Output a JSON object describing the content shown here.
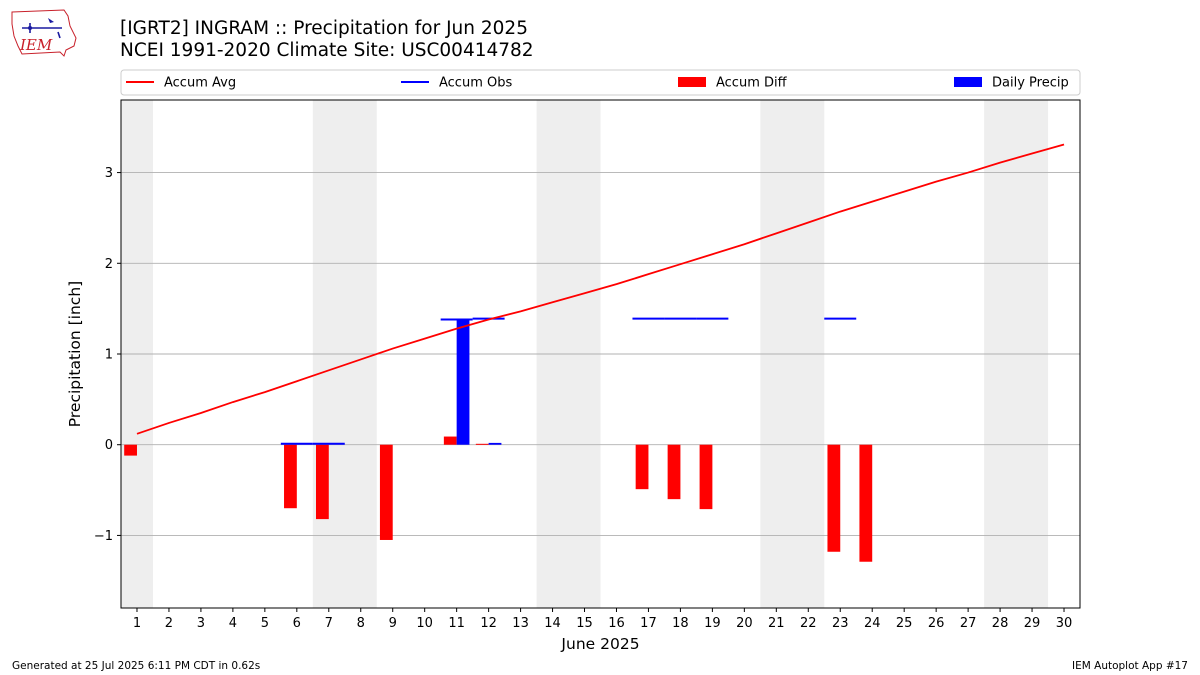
{
  "logo": {
    "text": "IEM"
  },
  "header": {
    "title_line1": "[IGRT2] INGRAM :: Precipitation for Jun 2025",
    "title_line2": "NCEI 1991-2020 Climate Site: USC00414782"
  },
  "footer": {
    "left": "Generated at 25 Jul 2025 6:11 PM CDT in 0.62s",
    "right": "IEM Autoplot App #17"
  },
  "chart_data": {
    "type": "bar",
    "xlabel": "June 2025",
    "ylabel": "Precipitation [inch]",
    "xlim": [
      0.5,
      30.5
    ],
    "ylim": [
      -1.8,
      3.8
    ],
    "yticks": [
      -1,
      0,
      1,
      2,
      3
    ],
    "grid": true,
    "legend_position": "top",
    "days": [
      1,
      2,
      3,
      4,
      5,
      6,
      7,
      8,
      9,
      10,
      11,
      12,
      13,
      14,
      15,
      16,
      17,
      18,
      19,
      20,
      21,
      22,
      23,
      24,
      25,
      26,
      27,
      28,
      29,
      30
    ],
    "weekend_shading": [
      [
        0.5,
        1.5
      ],
      [
        6.5,
        8.5
      ],
      [
        13.5,
        15.5
      ],
      [
        20.5,
        22.5
      ],
      [
        27.5,
        29.5
      ]
    ],
    "colors": {
      "avg": "#ff0000",
      "obs": "#0000ff",
      "diff": "#ff0000",
      "daily": "#0000ff",
      "shade": "#eeeeee",
      "grid": "#b0b0b0"
    },
    "series": [
      {
        "name": "Accum Avg",
        "kind": "line",
        "values": [
          0.12,
          0.24,
          0.35,
          0.47,
          0.58,
          0.7,
          0.82,
          0.94,
          1.06,
          1.17,
          1.28,
          1.38,
          1.47,
          1.57,
          1.67,
          1.77,
          1.88,
          1.99,
          2.1,
          2.21,
          2.33,
          2.45,
          2.57,
          2.68,
          2.79,
          2.9,
          3.0,
          3.11,
          3.21,
          3.31
        ]
      },
      {
        "name": "Accum Obs",
        "kind": "step",
        "values": [
          0,
          0,
          0,
          0,
          0,
          0.01,
          0.01,
          0.01,
          0.01,
          0.01,
          1.38,
          1.39,
          1.39,
          1.39,
          1.39,
          1.39,
          1.39,
          1.39,
          1.39,
          1.39,
          1.39,
          1.39,
          1.39,
          1.39,
          1.39,
          1.39,
          1.39,
          1.39,
          1.39,
          1.39
        ],
        "visible_days": [
          6,
          7,
          11,
          12,
          17,
          18,
          19,
          23
        ]
      },
      {
        "name": "Accum Diff",
        "kind": "bar",
        "values": {
          "1": -0.12,
          "6": -0.7,
          "7": -0.82,
          "9": -1.05,
          "11": 0.09,
          "12": 0.01,
          "17": -0.49,
          "18": -0.6,
          "19": -0.71,
          "23": -1.18,
          "24": -1.29
        }
      },
      {
        "name": "Daily Precip",
        "kind": "bar",
        "values": {
          "11": 1.37,
          "12": 0.02
        }
      }
    ]
  }
}
